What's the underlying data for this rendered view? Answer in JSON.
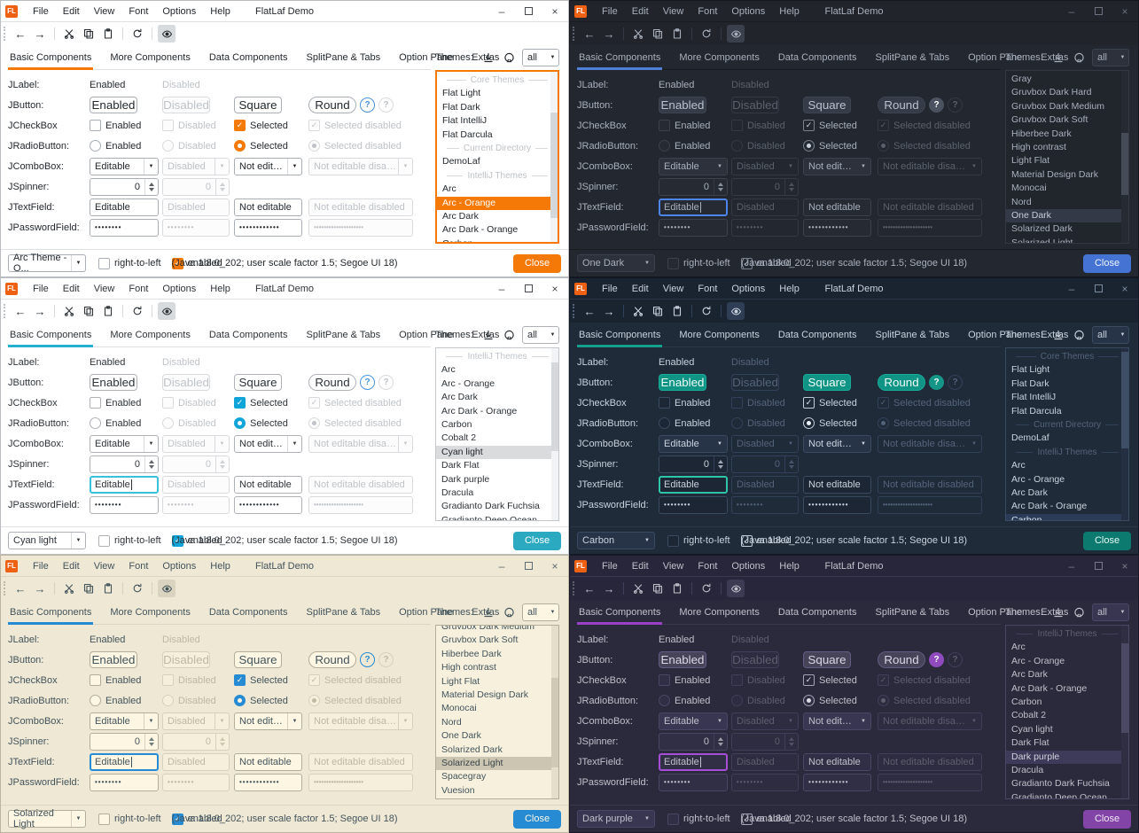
{
  "shared": {
    "logo_text": "FL",
    "window_title": "FlatLaf Demo",
    "menus": [
      "File",
      "Edit",
      "View",
      "Font",
      "Options",
      "Help"
    ],
    "tabs": [
      "Basic Components",
      "More Components",
      "Data Components",
      "SplitPane & Tabs",
      "Option Pane",
      "Extras"
    ],
    "themes_label": "Themes:",
    "themes_filter_value": "all",
    "help_text": "?",
    "rows": {
      "jlabel": {
        "label": "JLabel:",
        "c1": "Enabled",
        "c2": "Disabled"
      },
      "jbutton": {
        "label": "JButton:",
        "c1": "Enabled",
        "c2": "Disabled",
        "c3": "Square",
        "c4": "Round"
      },
      "jcheckbox": {
        "label": "JCheckBox",
        "c1": "Enabled",
        "c2": "Disabled",
        "c3": "Selected",
        "c4": "Selected disabled"
      },
      "jradio": {
        "label": "JRadioButton:",
        "c1": "Enabled",
        "c2": "Disabled",
        "c3": "Selected",
        "c4": "Selected disabled"
      },
      "jcombo": {
        "label": "JComboBox:",
        "c1": "Editable",
        "c2": "Disabled",
        "c3": "Not editable",
        "c4": "Not editable disabled"
      },
      "jspinner": {
        "label": "JSpinner:",
        "c1": "0",
        "c2": "0"
      },
      "jtext": {
        "label": "JTextField:",
        "c1": "Editable",
        "c2": "Disabled",
        "c3": "Not editable",
        "c4": "Not editable disabled"
      },
      "jpassword": {
        "label": "JPasswordField:",
        "c1": "••••••••",
        "c2": "••••••••",
        "c3": "••••••••••••",
        "c4": "••••••••••••••••••••"
      }
    },
    "bottom": {
      "rtl_label": "right-to-left",
      "enabled_label": "enabled",
      "java_info": "(Java 1.8.0_202;  user scale factor 1.5; Segoe UI 18)",
      "close_label": "Close"
    }
  },
  "panels": [
    {
      "id": "p0",
      "name": "arc-orange",
      "mode": "light",
      "combo_value": "Arc Theme - O...",
      "list_focused": true,
      "field_focused": false,
      "field_caret": false,
      "list": [
        {
          "type": "separator",
          "label": "Core Themes"
        },
        {
          "type": "item",
          "label": "Flat Light"
        },
        {
          "type": "item",
          "label": "Flat Dark"
        },
        {
          "type": "item",
          "label": "Flat IntelliJ"
        },
        {
          "type": "item",
          "label": "Flat Darcula"
        },
        {
          "type": "separator",
          "label": "Current Directory"
        },
        {
          "type": "item",
          "label": "DemoLaf"
        },
        {
          "type": "separator",
          "label": "IntelliJ Themes"
        },
        {
          "type": "item",
          "label": "Arc"
        },
        {
          "type": "item",
          "label": "Arc - Orange",
          "selected": true
        },
        {
          "type": "item",
          "label": "Arc Dark"
        },
        {
          "type": "item",
          "label": "Arc Dark - Orange"
        },
        {
          "type": "item",
          "label": "Carbon"
        }
      ],
      "colors": {
        "win-border": "#B9BDC1",
        "titlebar": "#FFFFFF",
        "bg": "#FFFFFF",
        "text": "#24292E",
        "winbtn": "#44484C",
        "muted": "#BEC2C6",
        "border": "#A9AEB4",
        "dis-border": "#D8DADD",
        "sep": "#DEE0E2",
        "field": "#FFFFFF",
        "dis-field": "#FCFCFC",
        "combo-bg": "#FFFFFF",
        "btn": "#FFFFFF",
        "btn-text": "#24292E",
        "btn-border": "#A9AEB4",
        "accent": "#F57906",
        "focus": "#F57906",
        "check": "#F57906",
        "check-border": "#F57906",
        "check-mark": "#FFFFFF",
        "help": "#4A90D9",
        "close": "#F57906",
        "close-text": "#FFFFFF",
        "sel-bg": "#F57906",
        "sel-text": "#FFFFFF",
        "list-bg": "#FFFFFF",
        "list-border": "#F57906",
        "track": "#F2F3F4",
        "thumb": "#D5D8DB",
        "toggle": "#D8DBDE"
      }
    },
    {
      "id": "p1",
      "name": "one-dark",
      "mode": "dark",
      "combo_value": "One Dark",
      "list_focused": false,
      "field_focused": true,
      "field_caret": true,
      "list": [
        {
          "type": "item",
          "label": "Gray"
        },
        {
          "type": "item",
          "label": "Gruvbox Dark Hard"
        },
        {
          "type": "item",
          "label": "Gruvbox Dark Medium"
        },
        {
          "type": "item",
          "label": "Gruvbox Dark Soft"
        },
        {
          "type": "item",
          "label": "Hiberbee Dark"
        },
        {
          "type": "item",
          "label": "High contrast"
        },
        {
          "type": "item",
          "label": "Light Flat"
        },
        {
          "type": "item",
          "label": "Material Design Dark"
        },
        {
          "type": "item",
          "label": "Monocai"
        },
        {
          "type": "item",
          "label": "Nord"
        },
        {
          "type": "item",
          "label": "One Dark",
          "selected": true
        },
        {
          "type": "item",
          "label": "Solarized Dark"
        },
        {
          "type": "item",
          "label": "Solarized Light"
        }
      ],
      "colors": {
        "win-border": "#14171D",
        "titlebar": "#21252B",
        "bg": "#23272F",
        "text": "#A8B0BD",
        "winbtn": "#6B7280",
        "muted": "#5A616D",
        "border": "#3B414D",
        "dis-border": "#343A45",
        "sep": "#181B20",
        "field": "#262B33",
        "dis-field": "#23272F",
        "combo-bg": "#2C313B",
        "btn": "#353B47",
        "btn-text": "#B9C1CE",
        "btn-border": "#3E4450",
        "accent": "#4E80D8",
        "focus": "#4D84E8",
        "check": "#4E80D8",
        "check-border": "#7A828F",
        "check-mark": "#CBD2DE",
        "help": "#4B5260",
        "close": "#4573D4",
        "close-text": "#F0F4FB",
        "sel-bg": "#333946",
        "sel-text": "#C6CEDB",
        "list-bg": "#21252C",
        "list-border": "#333944",
        "track": "#262A32",
        "thumb": "#454C58",
        "toggle": "#3A404C"
      }
    },
    {
      "id": "p2",
      "name": "cyan-light",
      "mode": "light",
      "combo_value": "Cyan light",
      "list_focused": false,
      "field_focused": true,
      "field_caret": true,
      "list": [
        {
          "type": "separator",
          "label": "IntelliJ Themes"
        },
        {
          "type": "item",
          "label": "Arc"
        },
        {
          "type": "item",
          "label": "Arc - Orange"
        },
        {
          "type": "item",
          "label": "Arc Dark"
        },
        {
          "type": "item",
          "label": "Arc Dark - Orange"
        },
        {
          "type": "item",
          "label": "Carbon"
        },
        {
          "type": "item",
          "label": "Cobalt 2"
        },
        {
          "type": "item",
          "label": "Cyan light",
          "selected": true
        },
        {
          "type": "item",
          "label": "Dark Flat"
        },
        {
          "type": "item",
          "label": "Dark purple"
        },
        {
          "type": "item",
          "label": "Dracula"
        },
        {
          "type": "item",
          "label": "Gradianto Dark Fuchsia"
        },
        {
          "type": "item",
          "label": "Gradianto Deep Ocean"
        }
      ],
      "colors": {
        "win-border": "#B9BDC1",
        "titlebar": "#FFFFFF",
        "bg": "#FFFFFF",
        "text": "#2E3338",
        "winbtn": "#44484C",
        "muted": "#C0C4C8",
        "border": "#AEB2B7",
        "dis-border": "#D8DADD",
        "sep": "#DEE0E2",
        "field": "#FFFFFF",
        "dis-field": "#FCFCFC",
        "combo-bg": "#FFFFFF",
        "btn": "#FFFFFF",
        "btn-text": "#2E3338",
        "btn-border": "#AEB2B7",
        "accent": "#24B0CE",
        "focus": "#3BC0DC",
        "check": "#10A5D8",
        "check-border": "#10A5D8",
        "check-mark": "#FFFFFF",
        "help": "#4796E0",
        "close": "#2BA9C1",
        "close-text": "#FFFFFF",
        "sel-bg": "#D9DBDD",
        "sel-text": "#1E2227",
        "list-bg": "#FFFFFF",
        "list-border": "#C4C7CB",
        "track": "#F2F3F4",
        "thumb": "#D5D8DB",
        "toggle": "#D8DBDE"
      }
    },
    {
      "id": "p3",
      "name": "carbon",
      "mode": "dark",
      "combo_value": "Carbon",
      "list_focused": false,
      "field_focused": true,
      "field_caret": false,
      "list": [
        {
          "type": "separator",
          "label": "Core Themes"
        },
        {
          "type": "item",
          "label": "Flat Light"
        },
        {
          "type": "item",
          "label": "Flat Dark"
        },
        {
          "type": "item",
          "label": "Flat IntelliJ"
        },
        {
          "type": "item",
          "label": "Flat Darcula"
        },
        {
          "type": "separator",
          "label": "Current Directory"
        },
        {
          "type": "item",
          "label": "DemoLaf"
        },
        {
          "type": "separator",
          "label": "IntelliJ Themes"
        },
        {
          "type": "item",
          "label": "Arc"
        },
        {
          "type": "item",
          "label": "Arc - Orange"
        },
        {
          "type": "item",
          "label": "Arc Dark"
        },
        {
          "type": "item",
          "label": "Arc Dark - Orange"
        },
        {
          "type": "item",
          "label": "Carbon",
          "selected": true
        }
      ],
      "colors": {
        "win-border": "#101823",
        "titlebar": "#1A2330",
        "bg": "#202B3A",
        "text": "#C9D2DD",
        "winbtn": "#7C8CA0",
        "muted": "#53637A",
        "border": "#3A4A60",
        "dis-border": "#32415B",
        "sep": "#2A3648",
        "field": "#1C2634",
        "dis-field": "#202B3A",
        "combo-bg": "#273448",
        "btn": "#0F9486",
        "btn-text": "#EFFBF8",
        "btn-border": "#17AC9A",
        "accent": "#14A08D",
        "focus": "#2EC5AB",
        "check": "#14A08D",
        "check-border": "#C3CEDA",
        "check-mark": "#E9F1F9",
        "help": "#139687",
        "close": "#0C7A6F",
        "close-text": "#E4FAF6",
        "sel-bg": "#2B3C58",
        "sel-text": "#D8E2EE",
        "list-bg": "#202B3A",
        "list-border": "#3A4A60",
        "track": "#243042",
        "thumb": "#3E4E66",
        "toggle": "#2F3D55"
      }
    },
    {
      "id": "p4",
      "name": "solarized-light",
      "mode": "light",
      "combo_value": "Solarized Light",
      "list_focused": false,
      "field_focused": true,
      "field_caret": true,
      "list": [
        {
          "type": "item",
          "label": "Gruvbox Dark Medium",
          "clipped": true
        },
        {
          "type": "item",
          "label": "Gruvbox Dark Soft"
        },
        {
          "type": "item",
          "label": "Hiberbee Dark"
        },
        {
          "type": "item",
          "label": "High contrast"
        },
        {
          "type": "item",
          "label": "Light Flat"
        },
        {
          "type": "item",
          "label": "Material Design Dark"
        },
        {
          "type": "item",
          "label": "Monocai"
        },
        {
          "type": "item",
          "label": "Nord"
        },
        {
          "type": "item",
          "label": "One Dark"
        },
        {
          "type": "item",
          "label": "Solarized Dark"
        },
        {
          "type": "item",
          "label": "Solarized Light",
          "selected": true
        },
        {
          "type": "item",
          "label": "Spacegray"
        },
        {
          "type": "item",
          "label": "Vuesion"
        }
      ],
      "colors": {
        "win-border": "#BBB5A1",
        "titlebar": "#EEE8D5",
        "bg": "#EEE8D5",
        "text": "#43545C",
        "winbtn": "#5C6A72",
        "muted": "#BFB9A2",
        "border": "#B3AD9A",
        "dis-border": "#D6D0BC",
        "sep": "#DBD5C1",
        "field": "#FDF6E3",
        "dis-field": "#F5EFDC",
        "combo-bg": "#FDF6E3",
        "btn": "#FDF6E3",
        "btn-text": "#43545C",
        "btn-border": "#B3AD9A",
        "accent": "#268BD2",
        "focus": "#268BD2",
        "check": "#268BD2",
        "check-border": "#268BD2",
        "check-mark": "#FDF6E3",
        "help": "#268BD2",
        "close": "#268BD2",
        "close-text": "#FDF6E3",
        "sel-bg": "#CBC5B1",
        "sel-text": "#39444B",
        "list-bg": "#F6F0DD",
        "list-border": "#B3AD9A",
        "track": "#E4DECA",
        "thumb": "#CFC9B5",
        "toggle": "#D9D3BF"
      }
    },
    {
      "id": "p5",
      "name": "dark-purple",
      "mode": "dark",
      "combo_value": "Dark purple",
      "list_focused": false,
      "field_focused": true,
      "field_caret": true,
      "list": [
        {
          "type": "separator",
          "label": "IntelliJ Themes"
        },
        {
          "type": "item",
          "label": "Arc"
        },
        {
          "type": "item",
          "label": "Arc - Orange"
        },
        {
          "type": "item",
          "label": "Arc Dark"
        },
        {
          "type": "item",
          "label": "Arc Dark - Orange"
        },
        {
          "type": "item",
          "label": "Carbon"
        },
        {
          "type": "item",
          "label": "Cobalt 2"
        },
        {
          "type": "item",
          "label": "Cyan light"
        },
        {
          "type": "item",
          "label": "Dark Flat"
        },
        {
          "type": "item",
          "label": "Dark purple",
          "selected": true
        },
        {
          "type": "item",
          "label": "Dracula"
        },
        {
          "type": "item",
          "label": "Gradianto Dark Fuchsia"
        },
        {
          "type": "item",
          "label": "Gradianto Deep Ocean"
        }
      ],
      "colors": {
        "win-border": "#191826",
        "titlebar": "#27263A",
        "bg": "#2B2A3D",
        "text": "#BFC0C9",
        "winbtn": "#7A7B88",
        "muted": "#5D5E6D",
        "border": "#4A4766",
        "dis-border": "#413E5A",
        "sep": "#3A384F",
        "field": "#312F45",
        "dis-field": "#2E2C40",
        "combo-bg": "#393651",
        "btn": "#474359",
        "btn-text": "#DAD8E5",
        "btn-border": "#635C83",
        "accent": "#9B41C9",
        "focus": "#A64FD6",
        "check": "#9B41C9",
        "check-border": "#9FA3B2",
        "check-mark": "#DCDEE8",
        "help": "#8F4BBE",
        "close": "#8244A6",
        "close-text": "#F0E7F8",
        "sel-bg": "#3D3B59",
        "sel-text": "#D2D2DD",
        "list-bg": "#2B2A3D",
        "list-border": "#4A4766",
        "track": "#302E43",
        "thumb": "#4C4965",
        "toggle": "#3D3A54"
      }
    }
  ]
}
